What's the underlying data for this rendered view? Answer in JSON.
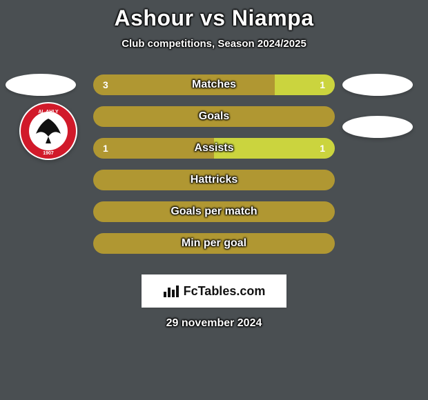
{
  "title": "Ashour vs Niampa",
  "subtitle": "Club competitions, Season 2024/2025",
  "background_color": "#4a4f52",
  "left_color": "#b09732",
  "right_color": "#cbd43e",
  "label_color": "#ffffff",
  "rows": [
    {
      "label": "Matches",
      "left": "3",
      "right": "1",
      "left_pct": 75,
      "right_pct": 25
    },
    {
      "label": "Goals",
      "left": "",
      "right": "",
      "left_pct": 100,
      "right_pct": 0
    },
    {
      "label": "Assists",
      "left": "1",
      "right": "1",
      "left_pct": 50,
      "right_pct": 50
    },
    {
      "label": "Hattricks",
      "left": "",
      "right": "",
      "left_pct": 100,
      "right_pct": 0
    },
    {
      "label": "Goals per match",
      "left": "",
      "right": "",
      "left_pct": 100,
      "right_pct": 0
    },
    {
      "label": "Min per goal",
      "left": "",
      "right": "",
      "left_pct": 100,
      "right_pct": 0
    }
  ],
  "player_ovals": {
    "left": {
      "row": 0
    },
    "right": {
      "row": 0
    }
  },
  "club_badges": {
    "left": {
      "row": 1,
      "bg": "#ffffff"
    },
    "right": {
      "row": 1,
      "bg": "#ffffff"
    }
  },
  "al_ahly_badge": {
    "outer_fill": "#d11a2a",
    "inner_fill": "#ffffff",
    "top_text": "AL AHLY",
    "bottom_text": "1907",
    "eagle_fill": "#111111"
  },
  "footer_brand": "FcTables.com",
  "date": "29 november 2024"
}
